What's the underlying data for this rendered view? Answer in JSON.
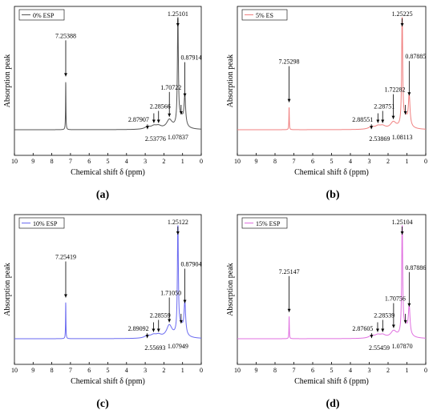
{
  "colors": {
    "axis": "#000000",
    "marker": "#000000"
  },
  "chart_data": [
    {
      "type": "line",
      "panel_label": "(a)",
      "legend": "0% ESP",
      "color": "#555555",
      "xlabel": "Chemical shift δ (ppm)",
      "ylabel": "Absorption peak",
      "xlim": [
        10,
        0
      ],
      "x_reversed": true,
      "x_ticks": [
        10,
        9,
        8,
        7,
        6,
        5,
        4,
        3,
        2,
        1,
        0
      ],
      "ylim": [
        0,
        1
      ],
      "peaks": [
        {
          "x": 7.25388,
          "y": 0.44,
          "label": "7.25388"
        },
        {
          "x": 2.87907,
          "y": 0.02,
          "label": "2.87907"
        },
        {
          "x": 2.53776,
          "y": 0.025,
          "label": "2.53776"
        },
        {
          "x": 2.28566,
          "y": 0.025,
          "label": "2.28566"
        },
        {
          "x": 1.70722,
          "y": 0.08,
          "label": "1.70722"
        },
        {
          "x": 1.25101,
          "y": 1.0,
          "label": "1.25101"
        },
        {
          "x": 1.07837,
          "y": 0.1,
          "label": "1.07837"
        },
        {
          "x": 0.87914,
          "y": 0.26,
          "label": "0.87914"
        }
      ]
    },
    {
      "type": "line",
      "panel_label": "(b)",
      "legend": "5% ES",
      "color": "#f08080",
      "xlabel": "Chemical shift δ (ppm)",
      "ylabel": "Absorption peak",
      "xlim": [
        10,
        0
      ],
      "x_reversed": true,
      "x_ticks": [
        10,
        9,
        8,
        7,
        6,
        5,
        4,
        3,
        2,
        1,
        0
      ],
      "ylim": [
        0,
        1
      ],
      "peaks": [
        {
          "x": 7.25298,
          "y": 0.21,
          "label": "7.25298"
        },
        {
          "x": 2.88551,
          "y": 0.02,
          "label": "2.88551"
        },
        {
          "x": 2.53869,
          "y": 0.025,
          "label": "2.53869"
        },
        {
          "x": 2.28751,
          "y": 0.025,
          "label": "2.28751"
        },
        {
          "x": 1.72282,
          "y": 0.06,
          "label": "1.72282"
        },
        {
          "x": 1.25225,
          "y": 1.0,
          "label": "1.25225"
        },
        {
          "x": 1.08113,
          "y": 0.1,
          "label": "1.08113"
        },
        {
          "x": 0.87885,
          "y": 0.27,
          "label": "0.87885"
        }
      ]
    },
    {
      "type": "line",
      "panel_label": "(c)",
      "legend": "10% ESP",
      "color": "#6a6af0",
      "xlabel": "Chemical shift δ (ppm)",
      "ylabel": "Absorption peak",
      "xlim": [
        10,
        0
      ],
      "x_reversed": true,
      "x_ticks": [
        10,
        9,
        8,
        7,
        6,
        5,
        4,
        3,
        2,
        1,
        0
      ],
      "ylim": [
        0,
        1
      ],
      "peaks": [
        {
          "x": 7.25419,
          "y": 0.33,
          "label": "7.25419"
        },
        {
          "x": 2.89092,
          "y": 0.02,
          "label": "2.89092"
        },
        {
          "x": 2.55693,
          "y": 0.025,
          "label": "2.55693"
        },
        {
          "x": 2.28559,
          "y": 0.025,
          "label": "2.28559"
        },
        {
          "x": 1.7105,
          "y": 0.11,
          "label": "1.71050"
        },
        {
          "x": 1.25122,
          "y": 1.0,
          "label": "1.25122"
        },
        {
          "x": 1.07949,
          "y": 0.1,
          "label": "1.07949"
        },
        {
          "x": 0.87904,
          "y": 0.28,
          "label": "0.87904"
        }
      ]
    },
    {
      "type": "line",
      "panel_label": "(d)",
      "legend": "15% ESP",
      "color": "#e070e0",
      "xlabel": "Chemical shift δ (ppm)",
      "ylabel": "Absorption peak",
      "xlim": [
        10,
        0
      ],
      "x_reversed": true,
      "x_ticks": [
        10,
        9,
        8,
        7,
        6,
        5,
        4,
        3,
        2,
        1,
        0
      ],
      "ylim": [
        0,
        1
      ],
      "peaks": [
        {
          "x": 7.25147,
          "y": 0.2,
          "label": "7.25147"
        },
        {
          "x": 2.87605,
          "y": 0.02,
          "label": "2.87605"
        },
        {
          "x": 2.55459,
          "y": 0.025,
          "label": "2.55459"
        },
        {
          "x": 2.28539,
          "y": 0.025,
          "label": "2.28539"
        },
        {
          "x": 1.70756,
          "y": 0.06,
          "label": "1.70756"
        },
        {
          "x": 1.25104,
          "y": 1.0,
          "label": "1.25104"
        },
        {
          "x": 1.0787,
          "y": 0.1,
          "label": "1.07870"
        },
        {
          "x": 0.87886,
          "y": 0.25,
          "label": "0.87886"
        }
      ]
    }
  ]
}
